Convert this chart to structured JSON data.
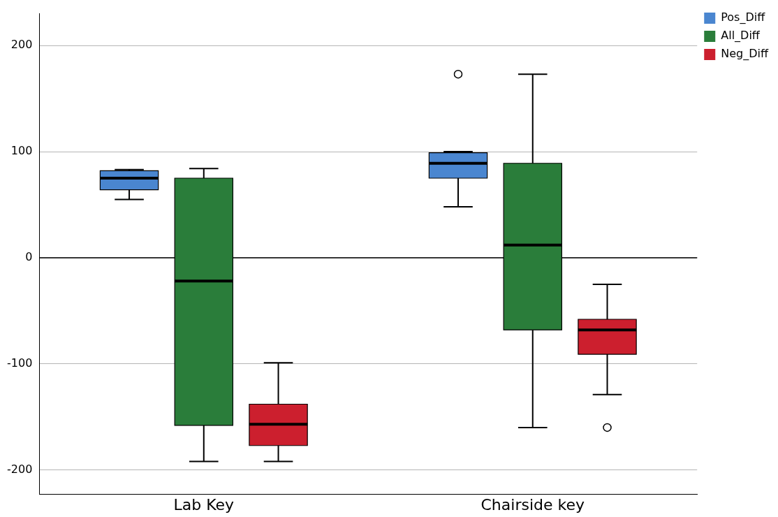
{
  "chart_data": {
    "type": "box",
    "categories": [
      "Lab Key",
      "Chairside key"
    ],
    "series": [
      {
        "name": "Pos_Diff",
        "color": "#4a86d0",
        "boxes": [
          {
            "low": 55,
            "q1": 64,
            "median": 75,
            "q3": 82,
            "high": 83
          },
          {
            "low": 48,
            "q1": 75,
            "median": 89,
            "q3": 99,
            "high": 100,
            "outliers": [
              173
            ]
          }
        ]
      },
      {
        "name": "All_Diff",
        "color": "#2a7d3a",
        "boxes": [
          {
            "low": -192,
            "q1": -158,
            "median": -22,
            "q3": 75,
            "high": 84
          },
          {
            "low": -160,
            "q1": -68,
            "median": 12,
            "q3": 89,
            "high": 173
          }
        ]
      },
      {
        "name": "Neg_Diff",
        "color": "#cc1f2e",
        "boxes": [
          {
            "low": -192,
            "q1": -177,
            "median": -157,
            "q3": -138,
            "high": -99
          },
          {
            "low": -129,
            "q1": -91,
            "median": -68,
            "q3": -58,
            "high": -25,
            "outliers": [
              -160
            ]
          }
        ]
      }
    ],
    "ylim": [
      -223,
      230
    ],
    "yticks": [
      -200,
      -100,
      0,
      100,
      200
    ],
    "grid": "y",
    "legend": "top right",
    "ref_lines": [
      {
        "axis": "y",
        "value": 0,
        "color": "#000000"
      }
    ]
  }
}
